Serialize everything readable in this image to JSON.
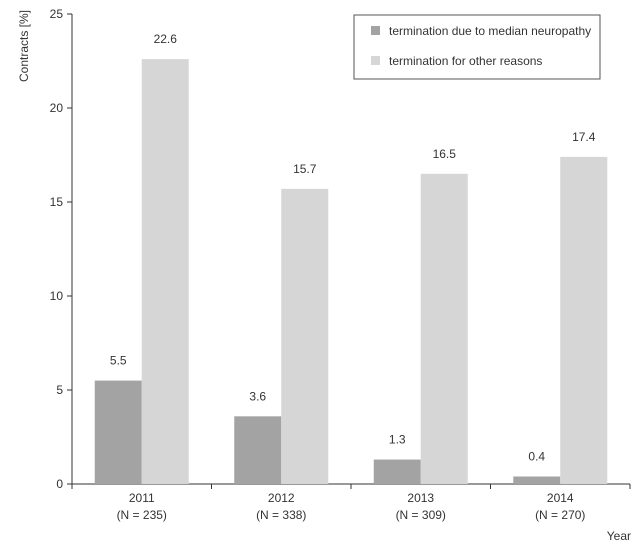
{
  "chart_data": {
    "type": "bar",
    "title": "",
    "xlabel": "Year",
    "ylabel": "Contracts [%]",
    "ylim": [
      0,
      25
    ],
    "yticks": [
      0,
      5,
      10,
      15,
      20,
      25
    ],
    "grid": false,
    "legend_position": "top-right",
    "categories": [
      {
        "year": "2011",
        "n": "(N = 235)"
      },
      {
        "year": "2012",
        "n": "(N = 338)"
      },
      {
        "year": "2013",
        "n": "(N = 309)"
      },
      {
        "year": "2014",
        "n": "(N = 270)"
      }
    ],
    "series": [
      {
        "name": "termination due to median neuropathy",
        "color": "#a3a3a3",
        "values": [
          5.5,
          3.6,
          1.3,
          0.4
        ],
        "labels": [
          "5.5",
          "3.6",
          "1.3",
          "0.4"
        ]
      },
      {
        "name": "termination for other reasons",
        "color": "#d6d6d6",
        "values": [
          22.6,
          15.7,
          16.5,
          17.4
        ],
        "labels": [
          "22.6",
          "15.7",
          "16.5",
          "17.4"
        ]
      }
    ]
  }
}
